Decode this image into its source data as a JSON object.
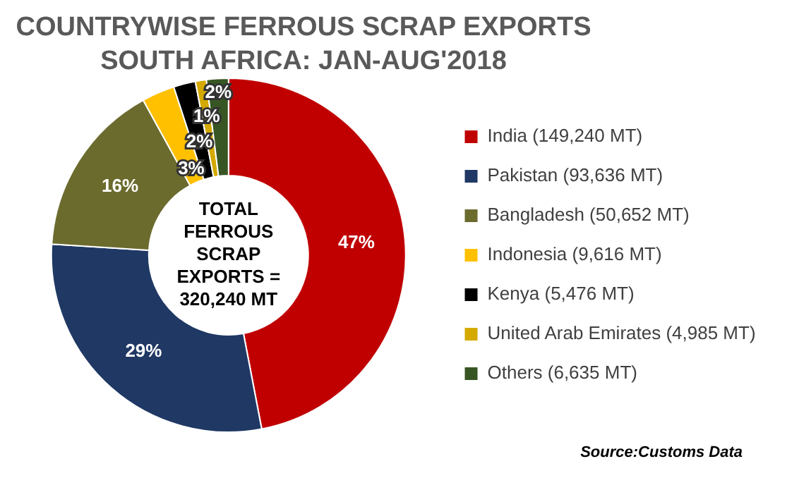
{
  "chart_data": {
    "type": "donut",
    "title": "COUNTRYWISE FERROUS SCRAP EXPORTS",
    "subtitle": "SOUTH AFRICA: JAN-AUG'2018",
    "categories": [
      "India (149,240 MT)",
      "Pakistan (93,636 MT)",
      "Bangladesh (50,652 MT)",
      "Indonesia (9,616 MT)",
      "Kenya (5,476 MT)",
      "United Arab Emirates (4,985 MT)",
      "Others (6,635 MT)"
    ],
    "values": [
      47,
      29,
      16,
      3,
      2,
      1,
      2
    ],
    "colors": [
      "#c00000",
      "#1f3864",
      "#6b6b2e",
      "#ffc000",
      "#000000",
      "#d4a900",
      "#375623"
    ],
    "value_labels": [
      "47%",
      "29%",
      "16%",
      "3%",
      "2%",
      "1%",
      "2%"
    ],
    "legend": "right",
    "annotations": [
      "TOTAL FERROUS SCRAP EXPORTS = 320,240 MT",
      "Source:Customs Data"
    ]
  }
}
